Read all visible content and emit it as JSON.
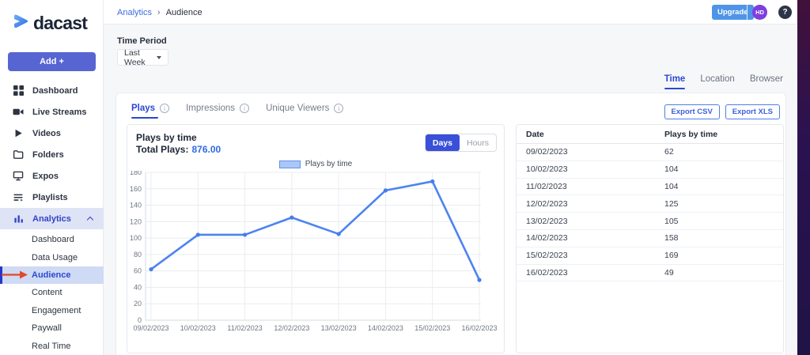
{
  "colors": {
    "accent_blue": "#2c49d2",
    "chart_line_blue": "#4c84ef",
    "brand_navy": "#1b2535",
    "annotation_red": "#e04a2b",
    "upgrade_blue": "#4e95e7",
    "avatar_purple": "#7d3fdd"
  },
  "icons": {
    "info": "i",
    "help": "?"
  },
  "brand": {
    "logo_text": "dacast"
  },
  "sidebar": {
    "add_button_label": "Add +",
    "items": [
      {
        "label": "Dashboard",
        "icon": "dashboard"
      },
      {
        "label": "Live Streams",
        "icon": "camera"
      },
      {
        "label": "Videos",
        "icon": "play"
      },
      {
        "label": "Folders",
        "icon": "folder"
      },
      {
        "label": "Expos",
        "icon": "monitor"
      },
      {
        "label": "Playlists",
        "icon": "playlist"
      },
      {
        "label": "Analytics",
        "icon": "bar-chart",
        "active": true,
        "expanded": true
      }
    ],
    "analytics_children": [
      {
        "label": "Dashboard"
      },
      {
        "label": "Data Usage"
      },
      {
        "label": "Audience",
        "active": true
      },
      {
        "label": "Content"
      },
      {
        "label": "Engagement"
      },
      {
        "label": "Paywall"
      },
      {
        "label": "Real Time"
      }
    ]
  },
  "header": {
    "breadcrumb": [
      "Analytics",
      "Audience"
    ],
    "upgrade_label": "Upgrade",
    "avatar_initials": "HD",
    "help_glyph": "?"
  },
  "filters": {
    "time_period_label": "Time Period",
    "time_period_value": "Last Week"
  },
  "view_tabs": [
    {
      "label": "Time",
      "active": true
    },
    {
      "label": "Location"
    },
    {
      "label": "Browser"
    }
  ],
  "metric_tabs": [
    {
      "label": "Plays",
      "active": true,
      "info": true
    },
    {
      "label": "Impressions",
      "info": true
    },
    {
      "label": "Unique Viewers",
      "info": true
    }
  ],
  "export_buttons": {
    "csv": "Export CSV",
    "xls": "Export XLS"
  },
  "chart_panel": {
    "title": "Plays by time",
    "total_label": "Total Plays:",
    "total_value": "876.00",
    "legend": "Plays by time",
    "toggle": [
      {
        "label": "Days",
        "active": true
      },
      {
        "label": "Hours"
      }
    ]
  },
  "chart_data": {
    "type": "line",
    "title": "Plays by time",
    "x": [
      "09/02/2023",
      "10/02/2023",
      "11/02/2023",
      "12/02/2023",
      "13/02/2023",
      "14/02/2023",
      "15/02/2023",
      "16/02/2023"
    ],
    "series": [
      {
        "name": "Plays by time",
        "values": [
          62,
          104,
          104,
          125,
          105,
          158,
          169,
          49
        ]
      }
    ],
    "xlabel": "",
    "ylabel": "",
    "ylim": [
      0,
      180
    ],
    "ytick_step": 20,
    "grid": true,
    "legend_position": "top"
  },
  "table": {
    "columns": [
      "Date",
      "Plays by time"
    ],
    "rows": [
      [
        "09/02/2023",
        "62"
      ],
      [
        "10/02/2023",
        "104"
      ],
      [
        "11/02/2023",
        "104"
      ],
      [
        "12/02/2023",
        "125"
      ],
      [
        "13/02/2023",
        "105"
      ],
      [
        "14/02/2023",
        "158"
      ],
      [
        "15/02/2023",
        "169"
      ],
      [
        "16/02/2023",
        "49"
      ]
    ]
  }
}
